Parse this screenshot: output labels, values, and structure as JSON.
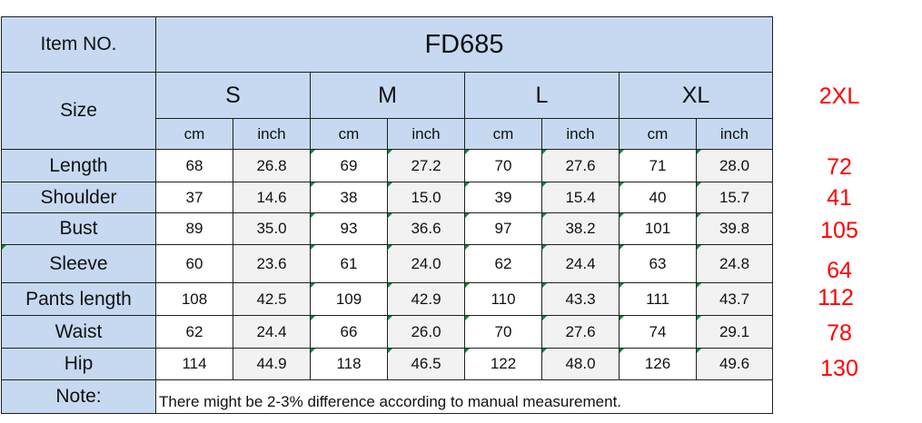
{
  "table": {
    "item_label": "Item NO.",
    "item_no": "FD685",
    "size_label": "Size",
    "sizes": [
      "S",
      "M",
      "L",
      "XL"
    ],
    "extra_size": "2XL",
    "unit_cm": "cm",
    "unit_inch": "inch",
    "rows": [
      {
        "label": "Length",
        "values": [
          "68",
          "26.8",
          "69",
          "27.2",
          "70",
          "27.6",
          "71",
          "28.0"
        ],
        "extra": "72"
      },
      {
        "label": "Shoulder",
        "values": [
          "37",
          "14.6",
          "38",
          "15.0",
          "39",
          "15.4",
          "40",
          "15.7"
        ],
        "extra": "41"
      },
      {
        "label": "Bust",
        "values": [
          "89",
          "35.0",
          "93",
          "36.6",
          "97",
          "38.2",
          "101",
          "39.8"
        ],
        "extra": "105"
      },
      {
        "label": "Sleeve",
        "values": [
          "60",
          "23.6",
          "61",
          "24.0",
          "62",
          "24.4",
          "63",
          "24.8"
        ],
        "extra": "64"
      },
      {
        "label": "Pants length",
        "values": [
          "108",
          "42.5",
          "109",
          "42.9",
          "110",
          "43.3",
          "111",
          "43.7"
        ],
        "extra": "112"
      },
      {
        "label": "Waist",
        "values": [
          "62",
          "24.4",
          "66",
          "26.0",
          "70",
          "27.6",
          "74",
          "29.1"
        ],
        "extra": "78"
      },
      {
        "label": "Hip",
        "values": [
          "114",
          "44.9",
          "118",
          "46.5",
          "122",
          "48.0",
          "126",
          "49.6"
        ],
        "extra": "130"
      }
    ],
    "note_label": "Note:",
    "note_text": "There might be 2-3% difference according to manual measurement.",
    "colors": {
      "header_bg": "#c6d9f0",
      "gray_cell": "#f2f2f2",
      "extra_text": "#ff0000",
      "marker": "#0b8a3e"
    }
  }
}
